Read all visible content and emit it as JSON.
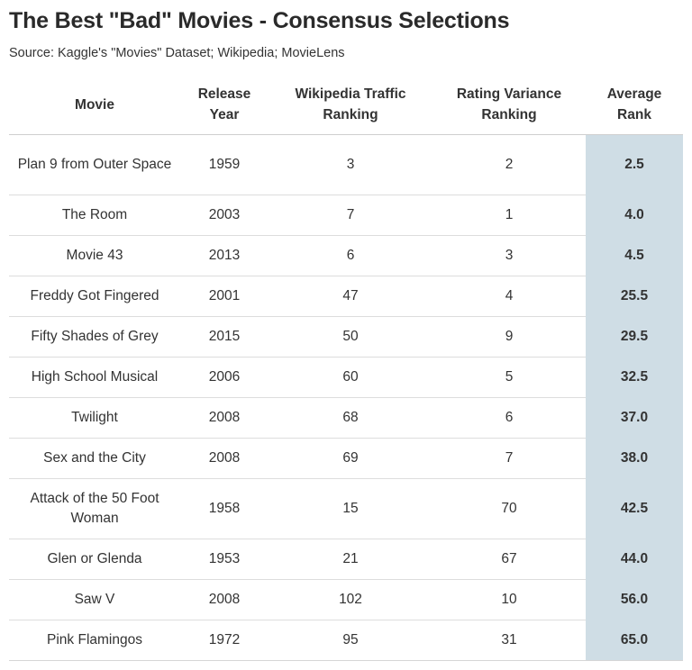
{
  "title": "The Best \"Bad\" Movies - Consensus Selections",
  "subtitle": "Source: Kaggle's \"Movies\" Dataset; Wikipedia; MovieLens",
  "chart_data": {
    "type": "table",
    "columns": [
      {
        "line1": "Movie",
        "line2": ""
      },
      {
        "line1": "Release",
        "line2": "Year"
      },
      {
        "line1": "Wikipedia Traffic",
        "line2": "Ranking"
      },
      {
        "line1": "Rating Variance",
        "line2": "Ranking"
      },
      {
        "line1": "Average",
        "line2": "Rank"
      }
    ],
    "highlight_color": "#cfdde5",
    "rows": [
      {
        "movie": "Plan 9 from Outer Space",
        "year": "1959",
        "wiki": "3",
        "variance": "2",
        "avg": "2.5"
      },
      {
        "movie": "The Room",
        "year": "2003",
        "wiki": "7",
        "variance": "1",
        "avg": "4.0"
      },
      {
        "movie": "Movie 43",
        "year": "2013",
        "wiki": "6",
        "variance": "3",
        "avg": "4.5"
      },
      {
        "movie": "Freddy Got Fingered",
        "year": "2001",
        "wiki": "47",
        "variance": "4",
        "avg": "25.5"
      },
      {
        "movie": "Fifty Shades of Grey",
        "year": "2015",
        "wiki": "50",
        "variance": "9",
        "avg": "29.5"
      },
      {
        "movie": "High School Musical",
        "year": "2006",
        "wiki": "60",
        "variance": "5",
        "avg": "32.5"
      },
      {
        "movie": "Twilight",
        "year": "2008",
        "wiki": "68",
        "variance": "6",
        "avg": "37.0"
      },
      {
        "movie": "Sex and the City",
        "year": "2008",
        "wiki": "69",
        "variance": "7",
        "avg": "38.0"
      },
      {
        "movie": "Attack of the 50 Foot Woman",
        "year": "1958",
        "wiki": "15",
        "variance": "70",
        "avg": "42.5"
      },
      {
        "movie": "Glen or Glenda",
        "year": "1953",
        "wiki": "21",
        "variance": "67",
        "avg": "44.0"
      },
      {
        "movie": "Saw V",
        "year": "2008",
        "wiki": "102",
        "variance": "10",
        "avg": "56.0"
      },
      {
        "movie": "Pink Flamingos",
        "year": "1972",
        "wiki": "95",
        "variance": "31",
        "avg": "65.0"
      }
    ]
  }
}
